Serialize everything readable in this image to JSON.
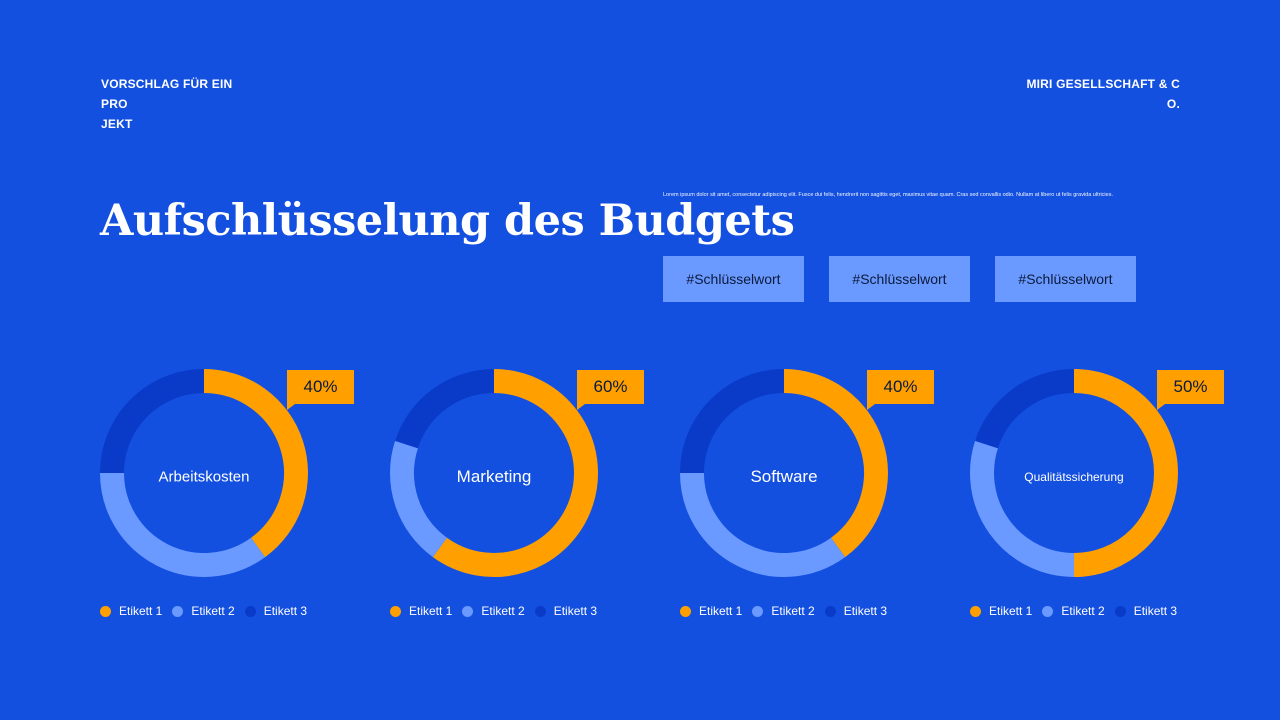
{
  "header": {
    "left_line1": "VORSCHLAG FÜR EIN PRO",
    "left_line2": "JEKT",
    "right_line1": "MIRI GESELLSCHAFT & C",
    "right_line2": "O."
  },
  "title": "Aufschlüsselung des Budgets",
  "description": "Lorem ipsum dolor sit amet, consectetur adipiscing elit. Fusce dui felis, hendrerit non sagittis eget, maximus vitae quam. Cras sed convallis odio. Nullam at libero ut felis gravida ultricies.",
  "keywords": [
    "#Schlüsselwort",
    "#Schlüsselwort",
    "#Schlüsselwort"
  ],
  "colors": {
    "background": "#1450e0",
    "series1": "#ffa000",
    "series2": "#6a9aff",
    "series3": "#0a3ac8"
  },
  "chart_data": [
    {
      "type": "pie",
      "center_label": "Arbeitskosten",
      "badge": "40%",
      "labels": [
        "Etikett 1",
        "Etikett 2",
        "Etikett 3"
      ],
      "values": [
        40,
        35,
        25
      ]
    },
    {
      "type": "pie",
      "center_label": "Marketing",
      "badge": "60%",
      "labels": [
        "Etikett 1",
        "Etikett 2",
        "Etikett 3"
      ],
      "values": [
        60,
        20,
        20
      ]
    },
    {
      "type": "pie",
      "center_label": "Software",
      "badge": "40%",
      "labels": [
        "Etikett 1",
        "Etikett 2",
        "Etikett 3"
      ],
      "values": [
        40,
        35,
        25
      ]
    },
    {
      "type": "pie",
      "center_label": "Qualitätssicherung",
      "badge": "50%",
      "labels": [
        "Etikett 1",
        "Etikett 2",
        "Etikett 3"
      ],
      "values": [
        50,
        30,
        20
      ]
    }
  ]
}
